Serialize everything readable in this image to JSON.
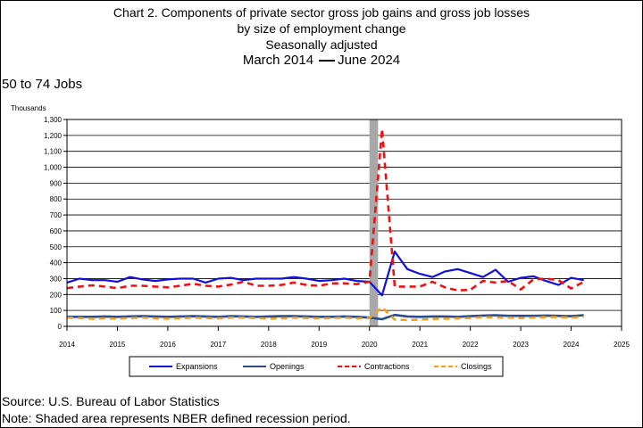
{
  "title": {
    "line1": "Chart 2. Components of private sector gross job gains and gross job losses",
    "line2": "by size of employment change",
    "line3": "Seasonally adjusted",
    "line4_start": "March 2014",
    "line4_end": "June 2024"
  },
  "panel_label": "50 to 74 Jobs",
  "units_label": "Thousands",
  "source": "Source: U.S. Bureau of Labor Statistics",
  "note": "Note: Shaded area represents NBER defined recession period.",
  "colors": {
    "expansions": "#1010dd",
    "openings": "#2a4a8a",
    "contractions": "#ee1111",
    "closings": "#f0a020",
    "recession": "#a8a8a8"
  },
  "chart_data": {
    "type": "line",
    "xlim": [
      2014,
      2025
    ],
    "ylim": [
      0,
      1300
    ],
    "y_ticks": [
      "0",
      "100",
      "200",
      "300",
      "400",
      "500",
      "600",
      "700",
      "800",
      "900",
      "1,000",
      "1,100",
      "1,200",
      "1,300"
    ],
    "x_ticks": [
      "2014",
      "2015",
      "2016",
      "2017",
      "2018",
      "2019",
      "2020",
      "2021",
      "2022",
      "2023",
      "2024",
      "2025"
    ],
    "grid": "horizontal",
    "legend": "bottom",
    "recession": [
      2020.0,
      2020.17
    ],
    "x": [
      2014.0,
      2014.25,
      2014.5,
      2014.75,
      2015.0,
      2015.25,
      2015.5,
      2015.75,
      2016.0,
      2016.25,
      2016.5,
      2016.75,
      2017.0,
      2017.25,
      2017.5,
      2017.75,
      2018.0,
      2018.25,
      2018.5,
      2018.75,
      2019.0,
      2019.25,
      2019.5,
      2019.75,
      2020.0,
      2020.25,
      2020.5,
      2020.75,
      2021.0,
      2021.25,
      2021.5,
      2021.75,
      2022.0,
      2022.25,
      2022.5,
      2022.75,
      2023.0,
      2023.25,
      2023.5,
      2023.75,
      2024.0,
      2024.25
    ],
    "series": [
      {
        "name": "Expansions",
        "values": [
          275,
          300,
          290,
          290,
          280,
          310,
          295,
          285,
          295,
          300,
          300,
          275,
          300,
          305,
          290,
          300,
          300,
          300,
          310,
          300,
          285,
          290,
          300,
          285,
          280,
          195,
          470,
          360,
          330,
          310,
          345,
          360,
          335,
          310,
          355,
          280,
          305,
          315,
          285,
          260,
          305,
          290
        ]
      },
      {
        "name": "Openings",
        "values": [
          60,
          60,
          60,
          62,
          60,
          63,
          64,
          62,
          60,
          62,
          64,
          62,
          60,
          64,
          62,
          60,
          62,
          64,
          64,
          62,
          60,
          60,
          62,
          60,
          55,
          45,
          72,
          62,
          60,
          62,
          62,
          60,
          64,
          68,
          70,
          66,
          66,
          66,
          68,
          66,
          64,
          70
        ]
      },
      {
        "name": "Contractions",
        "values": [
          240,
          250,
          258,
          250,
          240,
          255,
          255,
          250,
          245,
          255,
          268,
          255,
          250,
          262,
          280,
          255,
          255,
          260,
          275,
          260,
          255,
          270,
          270,
          265,
          280,
          1240,
          250,
          250,
          250,
          280,
          245,
          225,
          230,
          285,
          275,
          285,
          232,
          295,
          300,
          290,
          238,
          280
        ]
      },
      {
        "name": "Closings",
        "values": [
          55,
          52,
          48,
          50,
          48,
          52,
          55,
          50,
          48,
          50,
          55,
          52,
          50,
          55,
          55,
          52,
          48,
          50,
          55,
          52,
          50,
          52,
          55,
          50,
          52,
          120,
          42,
          40,
          42,
          46,
          48,
          50,
          52,
          58,
          56,
          55,
          52,
          55,
          58,
          58,
          55,
          60
        ]
      }
    ]
  }
}
